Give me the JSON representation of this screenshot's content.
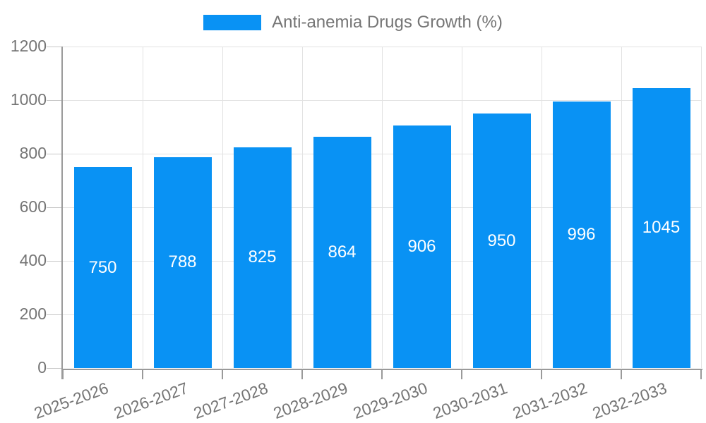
{
  "chart_data": {
    "type": "bar",
    "title": "",
    "categories": [
      "2025-2026",
      "2026-2027",
      "2027-2028",
      "2028-2029",
      "2029-2030",
      "2030-2031",
      "2031-2032",
      "2032-2033"
    ],
    "series": [
      {
        "name": "Anti-anemia Drugs Growth (%)",
        "values": [
          750,
          788,
          825,
          864,
          906,
          950,
          996,
          1045
        ]
      }
    ],
    "xlabel": "",
    "ylabel": "",
    "ylim": [
      0,
      1200
    ],
    "yticks": [
      0,
      200,
      400,
      600,
      800,
      1000,
      1200
    ],
    "grid": true,
    "legend_position": "top-center",
    "value_labels_inside_bars": true,
    "x_label_rotation_deg": -20,
    "colors": {
      "bar": "#0992f4",
      "bar_label": "#ffffff",
      "axis_text": "#757575",
      "axis_line": "#9a9a9a",
      "gridline": "#e2e2e2",
      "tick": "#c6c6c6",
      "background": "#ffffff"
    }
  }
}
